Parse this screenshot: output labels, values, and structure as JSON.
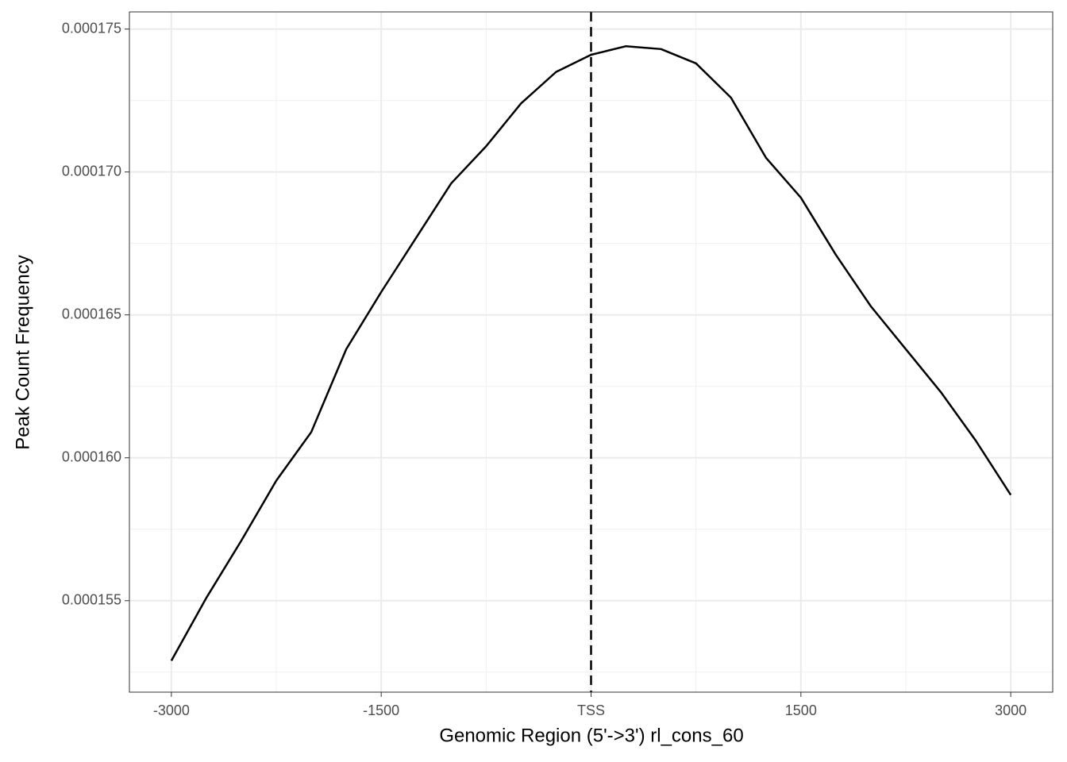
{
  "chart_data": {
    "type": "line",
    "x_label": "Genomic Region (5'->3') rl_cons_60",
    "y_label": "Peak Count Frequency",
    "x": [
      -3000,
      -2750,
      -2500,
      -2250,
      -2000,
      -1750,
      -1500,
      -1250,
      -1000,
      -750,
      -500,
      -250,
      0,
      250,
      500,
      750,
      1000,
      1250,
      1500,
      1750,
      2000,
      2250,
      2500,
      2750,
      3000
    ],
    "values": [
      0.0001529,
      0.0001551,
      0.0001571,
      0.0001592,
      0.0001609,
      0.0001638,
      0.0001658,
      0.0001677,
      0.0001696,
      0.0001709,
      0.0001724,
      0.0001735,
      0.0001741,
      0.0001744,
      0.0001743,
      0.0001738,
      0.0001726,
      0.0001705,
      0.0001691,
      0.0001671,
      0.0001653,
      0.0001638,
      0.0001623,
      0.0001606,
      0.0001587
    ],
    "color": "#000000",
    "xlim": [
      -3300,
      3300
    ],
    "ylim": [
      0.0001518,
      0.0001756
    ],
    "xticks": [
      -3000,
      -1500,
      {
        "value": 0,
        "label": "TSS"
      },
      1500,
      3000
    ],
    "yticks": [
      0.000155,
      {
        "value": 0.00016,
        "label": "0.000160"
      },
      0.000165,
      {
        "value": 0.00017,
        "label": "0.000170"
      },
      0.000175
    ],
    "xminor": [
      -2250,
      -750,
      750,
      2250
    ],
    "yminor": [
      0.0001525,
      0.0001575,
      0.0001625,
      0.0001675,
      0.0001725
    ],
    "vline": 0,
    "grid": true
  }
}
